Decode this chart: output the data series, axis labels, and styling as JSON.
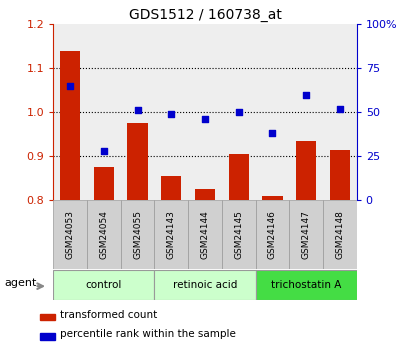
{
  "title": "GDS1512 / 160738_at",
  "samples": [
    "GSM24053",
    "GSM24054",
    "GSM24055",
    "GSM24143",
    "GSM24144",
    "GSM24145",
    "GSM24146",
    "GSM24147",
    "GSM24148"
  ],
  "red_values": [
    1.14,
    0.875,
    0.975,
    0.855,
    0.825,
    0.905,
    0.81,
    0.935,
    0.915
  ],
  "blue_values": [
    65,
    28,
    51,
    49,
    46,
    50,
    38,
    60,
    52
  ],
  "red_color": "#cc2200",
  "blue_color": "#0000cc",
  "ylim_left": [
    0.8,
    1.2
  ],
  "ylim_right": [
    0,
    100
  ],
  "yticks_left": [
    0.8,
    0.9,
    1.0,
    1.1,
    1.2
  ],
  "yticks_right": [
    0,
    25,
    50,
    75,
    100
  ],
  "ytick_labels_right": [
    "0",
    "25",
    "50",
    "75",
    "100%"
  ],
  "group_defs": [
    {
      "label": "control",
      "indices": [
        0,
        1,
        2
      ],
      "color": "#ccffcc"
    },
    {
      "label": "retinoic acid",
      "indices": [
        3,
        4,
        5
      ],
      "color": "#ccffcc"
    },
    {
      "label": "trichostatin A",
      "indices": [
        6,
        7,
        8
      ],
      "color": "#44dd44"
    }
  ],
  "agent_label": "agent",
  "legend_red": "transformed count",
  "legend_blue": "percentile rank within the sample",
  "bar_width": 0.6,
  "dotted_yticks": [
    0.9,
    1.0,
    1.1
  ],
  "tick_bg_color": "#d0d0d0",
  "bg_color": "#ffffff",
  "plot_area_color": "#ffffff"
}
